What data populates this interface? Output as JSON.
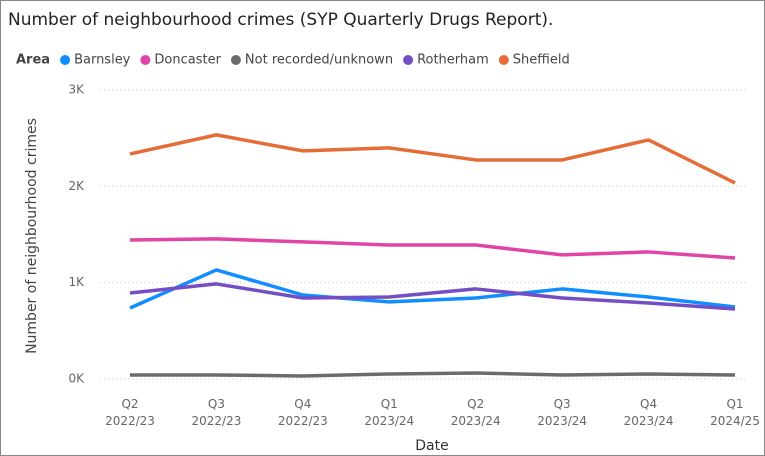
{
  "chart_data": {
    "type": "line",
    "title": "Number of neighbourhood crimes (SYP Quarterly Drugs Report).",
    "legend_title": "Area",
    "x_label": "Date",
    "y_label": "Number of neighbourhood crimes",
    "categories": [
      "Q2 2022/23",
      "Q3 2022/23",
      "Q4 2022/23",
      "Q1 2023/24",
      "Q2 2023/24",
      "Q3 2023/24",
      "Q4 2023/24",
      "Q1 2024/25"
    ],
    "series": [
      {
        "name": "Barnsley",
        "color": "#118dff",
        "values": [
          737,
          1132,
          872,
          800,
          841,
          935,
          851,
          748
        ]
      },
      {
        "name": "Doncaster",
        "color": "#e044a7",
        "values": [
          1443,
          1454,
          1423,
          1391,
          1391,
          1288,
          1319,
          1256
        ]
      },
      {
        "name": "Not recorded/unknown",
        "color": "#6b6b6b",
        "values": [
          42,
          42,
          31,
          52,
          62,
          42,
          52,
          42
        ]
      },
      {
        "name": "Rotherham",
        "color": "#744ec2",
        "values": [
          893,
          987,
          841,
          851,
          935,
          841,
          789,
          727
        ]
      },
      {
        "name": "Sheffield",
        "color": "#e66c37",
        "values": [
          2336,
          2534,
          2368,
          2399,
          2274,
          2274,
          2482,
          2035
        ]
      }
    ],
    "ylim": [
      0,
      3000
    ],
    "yticks": [
      {
        "value": 0,
        "label": "0K"
      },
      {
        "value": 1000,
        "label": "1K"
      },
      {
        "value": 2000,
        "label": "2K"
      },
      {
        "value": 3000,
        "label": "3K"
      }
    ],
    "grid": true
  }
}
